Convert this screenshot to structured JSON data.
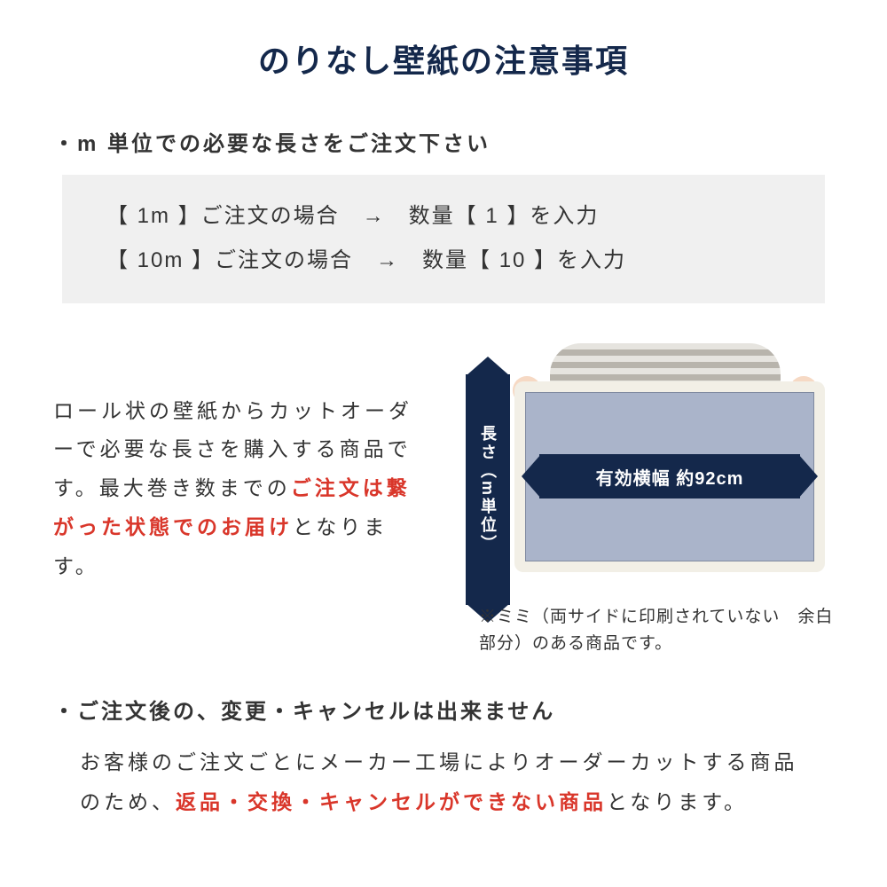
{
  "title": "のりなし壁紙の注意事項",
  "title_color": "#14284b",
  "bullet1": "・m 単位での必要な長さをご注文下さい",
  "example_box": {
    "background": "#f0f0f0",
    "row1": "【 1m 】ご注文の場合　→　数量【 1 】を入力",
    "row2": "【 10m 】ご注文の場合　→　数量【 10 】を入力"
  },
  "description": {
    "part1": "ロール状の壁紙からカットオーダーで必要な長さを購入する商品です。最大巻き数までの",
    "highlight": "ご注文は繋がった状態でのお届け",
    "part2": "となります。"
  },
  "diagram": {
    "length_label": "長さ（m単位）",
    "width_label": "有効横幅 約92cm",
    "arrow_color": "#14284b",
    "wallpaper_color": "#aab4ca",
    "roll_edge_color": "#f2efe6",
    "mimi_note": "※ミミ（両サイドに印刷されていない　余白部分）のある商品です。"
  },
  "bullet2": "・ご注文後の、変更・キャンセルは出来ません",
  "body2": {
    "part1": "お客様のご注文ごとにメーカー工場によりオーダーカットする商品のため、",
    "highlight": "返品・交換・キャンセルができない商品",
    "part2": "となります。"
  },
  "highlight_color": "#d9362a",
  "text_color": "#333333"
}
